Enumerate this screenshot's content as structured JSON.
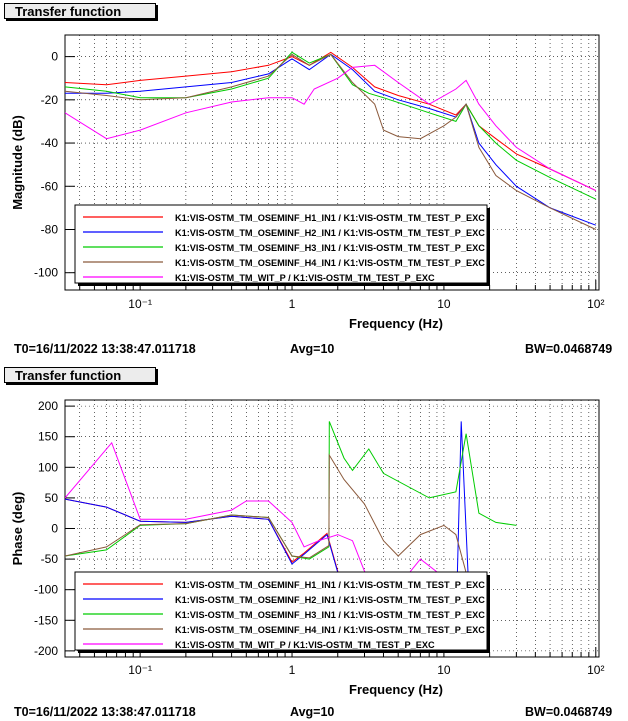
{
  "panels": [
    {
      "title": "Transfer function",
      "status": {
        "t0": "T0=16/11/2022 13:38:47.011718",
        "avg": "Avg=10",
        "bw": "BW=0.0468749"
      }
    },
    {
      "title": "Transfer function",
      "status": {
        "t0": "T0=16/11/2022 13:38:47.011718",
        "avg": "Avg=10",
        "bw": "BW=0.0468749"
      }
    }
  ],
  "chart_data": [
    {
      "type": "line",
      "xscale": "log",
      "xlim": [
        0.032,
        105
      ],
      "ylim": [
        -108,
        10
      ],
      "xlabel": "Frequency (Hz)",
      "ylabel": "Magnitude (dB)",
      "x_tick_labels": [
        "10⁻¹",
        "1",
        "10",
        "10²"
      ],
      "y_ticks": [
        0,
        -20,
        -40,
        -60,
        -80,
        -100
      ],
      "grid": true,
      "legend_position": "bottom-left",
      "series": [
        {
          "name": "K1:VIS-OSTM_TM_OSEMINF_H1_IN1 / K1:VIS-OSTM_TM_TEST_P_EXC",
          "color": "#ff0000",
          "points": [
            [
              0.032,
              -12
            ],
            [
              0.06,
              -13
            ],
            [
              0.1,
              -11
            ],
            [
              0.2,
              -9
            ],
            [
              0.4,
              -7
            ],
            [
              0.7,
              -4
            ],
            [
              1.0,
              0
            ],
            [
              1.3,
              -4
            ],
            [
              1.8,
              2
            ],
            [
              2.5,
              -5
            ],
            [
              3.5,
              -14
            ],
            [
              5,
              -18
            ],
            [
              8,
              -22
            ],
            [
              12,
              -27
            ],
            [
              14,
              -22
            ],
            [
              17,
              -32
            ],
            [
              22,
              -38
            ],
            [
              30,
              -45
            ],
            [
              50,
              -52
            ],
            [
              100,
              -62
            ]
          ]
        },
        {
          "name": "K1:VIS-OSTM_TM_OSEMINF_H2_IN1 / K1:VIS-OSTM_TM_TEST_P_EXC",
          "color": "#0000ff",
          "points": [
            [
              0.032,
              -17
            ],
            [
              0.06,
              -17
            ],
            [
              0.1,
              -16
            ],
            [
              0.2,
              -14
            ],
            [
              0.4,
              -12
            ],
            [
              0.7,
              -8
            ],
            [
              1.0,
              -1
            ],
            [
              1.3,
              -6
            ],
            [
              1.8,
              1
            ],
            [
              2.5,
              -6
            ],
            [
              3.5,
              -16
            ],
            [
              5,
              -20
            ],
            [
              8,
              -24
            ],
            [
              12,
              -28
            ],
            [
              14,
              -22
            ],
            [
              17,
              -40
            ],
            [
              22,
              -50
            ],
            [
              30,
              -60
            ],
            [
              50,
              -70
            ],
            [
              100,
              -78
            ]
          ]
        },
        {
          "name": "K1:VIS-OSTM_TM_OSEMINF_H3_IN1 / K1:VIS-OSTM_TM_TEST_P_EXC",
          "color": "#00cc00",
          "points": [
            [
              0.032,
              -14
            ],
            [
              0.06,
              -16
            ],
            [
              0.1,
              -19
            ],
            [
              0.2,
              -19
            ],
            [
              0.4,
              -15
            ],
            [
              0.7,
              -10
            ],
            [
              1.0,
              2
            ],
            [
              1.3,
              -3
            ],
            [
              1.8,
              1
            ],
            [
              2.5,
              -13
            ],
            [
              3.2,
              -17
            ],
            [
              4,
              -19
            ],
            [
              8,
              -26
            ],
            [
              12,
              -30
            ],
            [
              14,
              -22
            ],
            [
              17,
              -32
            ],
            [
              22,
              -40
            ],
            [
              30,
              -48
            ],
            [
              50,
              -56
            ],
            [
              100,
              -66
            ]
          ]
        },
        {
          "name": "K1:VIS-OSTM_TM_OSEMINF_H4_IN1 / K1:VIS-OSTM_TM_TEST_P_EXC",
          "color": "#8b5a3c",
          "points": [
            [
              0.032,
              -16
            ],
            [
              0.06,
              -18
            ],
            [
              0.1,
              -20
            ],
            [
              0.2,
              -19
            ],
            [
              0.4,
              -14
            ],
            [
              0.7,
              -9
            ],
            [
              1.0,
              1
            ],
            [
              1.3,
              -4
            ],
            [
              1.8,
              1
            ],
            [
              2.5,
              -12
            ],
            [
              3.5,
              -22
            ],
            [
              4,
              -34
            ],
            [
              5,
              -37
            ],
            [
              7,
              -38
            ],
            [
              10,
              -32
            ],
            [
              12,
              -28
            ],
            [
              14,
              -22
            ],
            [
              17,
              -42
            ],
            [
              22,
              -55
            ],
            [
              30,
              -62
            ],
            [
              50,
              -70
            ],
            [
              100,
              -80
            ]
          ]
        },
        {
          "name": "K1:VIS-OSTM_TM_WIT_P / K1:VIS-OSTM_TM_TEST_P_EXC",
          "color": "#ff00ff",
          "points": [
            [
              0.032,
              -26
            ],
            [
              0.06,
              -38
            ],
            [
              0.1,
              -34
            ],
            [
              0.2,
              -26
            ],
            [
              0.4,
              -21
            ],
            [
              0.7,
              -19
            ],
            [
              1.0,
              -19
            ],
            [
              1.2,
              -22
            ],
            [
              1.4,
              -15
            ],
            [
              2.0,
              -10
            ],
            [
              2.5,
              -5
            ],
            [
              3.5,
              -4
            ],
            [
              5,
              -12
            ],
            [
              8,
              -22
            ],
            [
              12,
              -15
            ],
            [
              14,
              -11
            ],
            [
              17,
              -22
            ],
            [
              22,
              -32
            ],
            [
              30,
              -42
            ],
            [
              50,
              -52
            ],
            [
              100,
              -62
            ]
          ]
        }
      ]
    },
    {
      "type": "line",
      "xscale": "log",
      "xlim": [
        0.032,
        105
      ],
      "ylim": [
        -210,
        210
      ],
      "xlabel": "Frequency (Hz)",
      "ylabel": "Phase (deg)",
      "x_tick_labels": [
        "10⁻¹",
        "1",
        "10",
        "10²"
      ],
      "y_ticks": [
        200,
        150,
        100,
        50,
        0,
        -50,
        -100,
        -150,
        -200
      ],
      "grid": true,
      "legend_position": "bottom-left",
      "series": [
        {
          "name": "K1:VIS-OSTM_TM_OSEMINF_H1_IN1 / K1:VIS-OSTM_TM_TEST_P_EXC",
          "color": "#ff0000",
          "points": [
            [
              0.032,
              48
            ],
            [
              0.06,
              35
            ],
            [
              0.1,
              12
            ],
            [
              0.2,
              10
            ],
            [
              0.4,
              20
            ],
            [
              0.7,
              15
            ],
            [
              1.0,
              -55
            ],
            [
              1.2,
              -40
            ],
            [
              1.7,
              -8
            ],
            [
              2.0,
              -70
            ],
            [
              2.5,
              -120
            ],
            [
              4,
              -160
            ],
            [
              8,
              -170
            ],
            [
              12,
              -175
            ],
            [
              15,
              -175
            ]
          ]
        },
        {
          "name": "K1:VIS-OSTM_TM_OSEMINF_H2_IN1 / K1:VIS-OSTM_TM_TEST_P_EXC",
          "color": "#0000ff",
          "points": [
            [
              0.032,
              48
            ],
            [
              0.06,
              35
            ],
            [
              0.1,
              12
            ],
            [
              0.2,
              10
            ],
            [
              0.4,
              20
            ],
            [
              0.7,
              15
            ],
            [
              1.0,
              -58
            ],
            [
              1.2,
              -42
            ],
            [
              1.7,
              -10
            ],
            [
              2.0,
              -72
            ],
            [
              2.5,
              -125
            ],
            [
              4,
              -165
            ],
            [
              8,
              -172
            ],
            [
              12,
              -170
            ],
            [
              13,
              175
            ],
            [
              15,
              -170
            ]
          ]
        },
        {
          "name": "K1:VIS-OSTM_TM_OSEMINF_H3_IN1 / K1:VIS-OSTM_TM_TEST_P_EXC",
          "color": "#00cc00",
          "points": [
            [
              0.032,
              -45
            ],
            [
              0.06,
              -35
            ],
            [
              0.1,
              5
            ],
            [
              0.2,
              8
            ],
            [
              0.4,
              22
            ],
            [
              0.7,
              18
            ],
            [
              1.0,
              -45
            ],
            [
              1.3,
              -50
            ],
            [
              1.75,
              -30
            ],
            [
              1.76,
              175
            ],
            [
              2.2,
              115
            ],
            [
              2.5,
              95
            ],
            [
              3.2,
              130
            ],
            [
              4,
              90
            ],
            [
              8,
              50
            ],
            [
              12,
              60
            ],
            [
              14,
              155
            ],
            [
              17,
              25
            ],
            [
              22,
              10
            ],
            [
              30,
              5
            ]
          ]
        },
        {
          "name": "K1:VIS-OSTM_TM_OSEMINF_H4_IN1 / K1:VIS-OSTM_TM_TEST_P_EXC",
          "color": "#8b5a3c",
          "points": [
            [
              0.032,
              -45
            ],
            [
              0.06,
              -30
            ],
            [
              0.1,
              6
            ],
            [
              0.2,
              8
            ],
            [
              0.4,
              22
            ],
            [
              0.7,
              18
            ],
            [
              1.0,
              -45
            ],
            [
              1.3,
              -48
            ],
            [
              1.75,
              -28
            ],
            [
              1.76,
              120
            ],
            [
              2.2,
              80
            ],
            [
              3,
              40
            ],
            [
              4,
              -20
            ],
            [
              5,
              -45
            ],
            [
              7,
              -10
            ],
            [
              10,
              5
            ],
            [
              12,
              -10
            ],
            [
              15,
              -100
            ]
          ]
        },
        {
          "name": "K1:VIS-OSTM_TM_WIT_P / K1:VIS-OSTM_TM_TEST_P_EXC",
          "color": "#ff00ff",
          "points": [
            [
              0.032,
              50
            ],
            [
              0.065,
              140
            ],
            [
              0.1,
              15
            ],
            [
              0.2,
              15
            ],
            [
              0.4,
              30
            ],
            [
              0.5,
              45
            ],
            [
              0.7,
              45
            ],
            [
              1.0,
              10
            ],
            [
              1.2,
              -30
            ],
            [
              1.5,
              -20
            ],
            [
              2.0,
              -10
            ],
            [
              2.5,
              -20
            ],
            [
              3,
              -70
            ],
            [
              4,
              -100
            ],
            [
              5,
              -95
            ],
            [
              7,
              -50
            ],
            [
              12,
              -95
            ],
            [
              15,
              -110
            ]
          ]
        }
      ]
    }
  ]
}
